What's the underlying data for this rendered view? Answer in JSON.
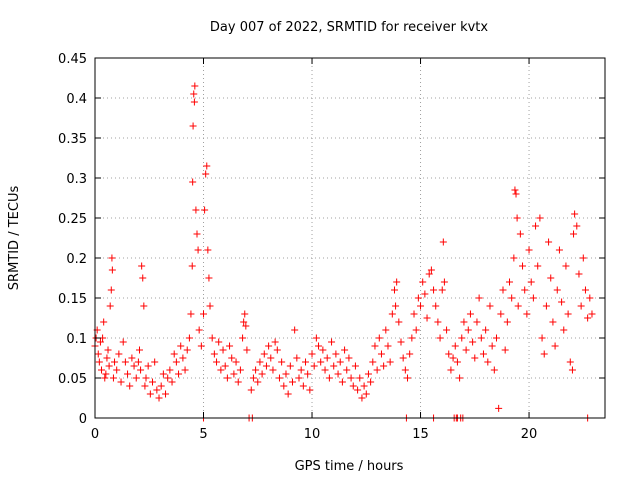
{
  "chart_data": {
    "type": "scatter",
    "title": "Day 007 of 2022, SRMTID for receiver kvtx",
    "xlabel": "GPS time / hours",
    "ylabel": "SRMTID / TECUs",
    "xlim": [
      0,
      23.5
    ],
    "ylim": [
      0,
      0.45
    ],
    "xticks": [
      0,
      5,
      10,
      15,
      20
    ],
    "xtick_labels": [
      "0",
      "5",
      "10",
      "15",
      "20"
    ],
    "yticks": [
      0,
      0.05,
      0.1,
      0.15,
      0.2,
      0.25,
      0.3,
      0.35,
      0.4,
      0.45
    ],
    "ytick_labels": [
      "0",
      "0.05",
      "0.1",
      "0.15",
      "0.2",
      "0.25",
      "0.3",
      "0.35",
      "0.4",
      "0.45"
    ],
    "grid": "dotted",
    "marker": "+",
    "color": "#ff0000",
    "series": [
      {
        "values": [
          [
            0.0,
            0.09
          ],
          [
            0.05,
            0.1
          ],
          [
            0.1,
            0.11
          ],
          [
            0.15,
            0.08
          ],
          [
            0.2,
            0.07
          ],
          [
            0.25,
            0.095
          ],
          [
            0.3,
            0.06
          ],
          [
            0.35,
            0.1
          ],
          [
            0.4,
            0.12
          ],
          [
            0.45,
            0.05
          ],
          [
            0.5,
            0.055
          ],
          [
            0.55,
            0.075
          ],
          [
            0.6,
            0.085
          ],
          [
            0.65,
            0.065
          ],
          [
            0.7,
            0.14
          ],
          [
            0.75,
            0.16
          ],
          [
            0.78,
            0.2
          ],
          [
            0.8,
            0.185
          ],
          [
            0.85,
            0.05
          ],
          [
            0.9,
            0.07
          ],
          [
            1.0,
            0.06
          ],
          [
            1.1,
            0.08
          ],
          [
            1.2,
            0.045
          ],
          [
            1.3,
            0.095
          ],
          [
            1.4,
            0.07
          ],
          [
            1.5,
            0.055
          ],
          [
            1.6,
            0.04
          ],
          [
            1.7,
            0.075
          ],
          [
            1.8,
            0.065
          ],
          [
            1.9,
            0.05
          ],
          [
            2.0,
            0.07
          ],
          [
            2.05,
            0.085
          ],
          [
            2.1,
            0.06
          ],
          [
            2.15,
            0.19
          ],
          [
            2.2,
            0.175
          ],
          [
            2.25,
            0.14
          ],
          [
            2.3,
            0.04
          ],
          [
            2.35,
            0.05
          ],
          [
            2.45,
            0.065
          ],
          [
            2.55,
            0.03
          ],
          [
            2.65,
            0.045
          ],
          [
            2.75,
            0.07
          ],
          [
            2.85,
            0.035
          ],
          [
            2.95,
            0.025
          ],
          [
            3.05,
            0.04
          ],
          [
            3.15,
            0.055
          ],
          [
            3.25,
            0.03
          ],
          [
            3.35,
            0.05
          ],
          [
            3.45,
            0.06
          ],
          [
            3.55,
            0.045
          ],
          [
            3.65,
            0.08
          ],
          [
            3.75,
            0.07
          ],
          [
            3.85,
            0.055
          ],
          [
            3.95,
            0.09
          ],
          [
            4.05,
            0.075
          ],
          [
            4.15,
            0.06
          ],
          [
            4.25,
            0.085
          ],
          [
            4.35,
            0.1
          ],
          [
            4.42,
            0.13
          ],
          [
            4.48,
            0.19
          ],
          [
            4.5,
            0.295
          ],
          [
            4.52,
            0.365
          ],
          [
            4.55,
            0.405
          ],
          [
            4.58,
            0.395
          ],
          [
            4.6,
            0.415
          ],
          [
            4.65,
            0.26
          ],
          [
            4.7,
            0.23
          ],
          [
            4.75,
            0.21
          ],
          [
            4.8,
            0.11
          ],
          [
            4.9,
            0.09
          ],
          [
            5.0,
            0.13
          ],
          [
            5.05,
            0.26
          ],
          [
            5.1,
            0.305
          ],
          [
            5.15,
            0.315
          ],
          [
            5.2,
            0.21
          ],
          [
            5.25,
            0.175
          ],
          [
            5.3,
            0.14
          ],
          [
            5.4,
            0.1
          ],
          [
            5.5,
            0.08
          ],
          [
            5.6,
            0.07
          ],
          [
            5.7,
            0.095
          ],
          [
            5.8,
            0.06
          ],
          [
            5.9,
            0.085
          ],
          [
            6.0,
            0.065
          ],
          [
            6.1,
            0.05
          ],
          [
            6.2,
            0.09
          ],
          [
            6.3,
            0.075
          ],
          [
            6.4,
            0.055
          ],
          [
            6.5,
            0.07
          ],
          [
            6.6,
            0.045
          ],
          [
            6.7,
            0.06
          ],
          [
            6.8,
            0.1
          ],
          [
            6.85,
            0.12
          ],
          [
            6.9,
            0.13
          ],
          [
            6.95,
            0.115
          ],
          [
            7.0,
            0.085
          ],
          [
            7.2,
            0.035
          ],
          [
            7.3,
            0.05
          ],
          [
            7.4,
            0.06
          ],
          [
            7.5,
            0.045
          ],
          [
            7.6,
            0.07
          ],
          [
            7.7,
            0.055
          ],
          [
            7.8,
            0.08
          ],
          [
            7.9,
            0.065
          ],
          [
            8.0,
            0.09
          ],
          [
            8.1,
            0.075
          ],
          [
            8.2,
            0.06
          ],
          [
            8.3,
            0.095
          ],
          [
            8.4,
            0.085
          ],
          [
            8.5,
            0.05
          ],
          [
            8.6,
            0.07
          ],
          [
            8.7,
            0.04
          ],
          [
            8.8,
            0.055
          ],
          [
            8.9,
            0.03
          ],
          [
            9.0,
            0.065
          ],
          [
            9.1,
            0.045
          ],
          [
            9.2,
            0.11
          ],
          [
            9.3,
            0.075
          ],
          [
            9.4,
            0.05
          ],
          [
            9.5,
            0.06
          ],
          [
            9.6,
            0.04
          ],
          [
            9.7,
            0.07
          ],
          [
            9.8,
            0.055
          ],
          [
            9.9,
            0.035
          ],
          [
            10.0,
            0.08
          ],
          [
            10.1,
            0.065
          ],
          [
            10.2,
            0.1
          ],
          [
            10.3,
            0.09
          ],
          [
            10.4,
            0.07
          ],
          [
            10.5,
            0.085
          ],
          [
            10.6,
            0.06
          ],
          [
            10.7,
            0.075
          ],
          [
            10.8,
            0.05
          ],
          [
            10.9,
            0.095
          ],
          [
            11.0,
            0.065
          ],
          [
            11.1,
            0.08
          ],
          [
            11.2,
            0.055
          ],
          [
            11.3,
            0.07
          ],
          [
            11.4,
            0.045
          ],
          [
            11.5,
            0.085
          ],
          [
            11.6,
            0.06
          ],
          [
            11.7,
            0.075
          ],
          [
            11.8,
            0.05
          ],
          [
            11.9,
            0.04
          ],
          [
            12.0,
            0.065
          ],
          [
            12.1,
            0.035
          ],
          [
            12.2,
            0.05
          ],
          [
            12.3,
            0.025
          ],
          [
            12.4,
            0.04
          ],
          [
            12.5,
            0.03
          ],
          [
            12.6,
            0.055
          ],
          [
            12.7,
            0.045
          ],
          [
            12.8,
            0.07
          ],
          [
            12.9,
            0.09
          ],
          [
            13.0,
            0.06
          ],
          [
            13.1,
            0.1
          ],
          [
            13.2,
            0.08
          ],
          [
            13.3,
            0.065
          ],
          [
            13.4,
            0.11
          ],
          [
            13.5,
            0.09
          ],
          [
            13.6,
            0.07
          ],
          [
            13.7,
            0.13
          ],
          [
            13.8,
            0.16
          ],
          [
            13.85,
            0.14
          ],
          [
            13.9,
            0.17
          ],
          [
            14.0,
            0.12
          ],
          [
            14.1,
            0.095
          ],
          [
            14.2,
            0.075
          ],
          [
            14.3,
            0.06
          ],
          [
            14.4,
            0.05
          ],
          [
            14.5,
            0.08
          ],
          [
            14.6,
            0.1
          ],
          [
            14.7,
            0.13
          ],
          [
            14.8,
            0.11
          ],
          [
            14.9,
            0.15
          ],
          [
            15.0,
            0.14
          ],
          [
            15.1,
            0.17
          ],
          [
            15.2,
            0.155
          ],
          [
            15.3,
            0.125
          ],
          [
            15.4,
            0.18
          ],
          [
            15.5,
            0.185
          ],
          [
            15.6,
            0.16
          ],
          [
            15.7,
            0.14
          ],
          [
            15.8,
            0.12
          ],
          [
            15.9,
            0.1
          ],
          [
            16.0,
            0.16
          ],
          [
            16.05,
            0.22
          ],
          [
            16.1,
            0.17
          ],
          [
            16.2,
            0.11
          ],
          [
            16.3,
            0.08
          ],
          [
            16.4,
            0.06
          ],
          [
            16.5,
            0.075
          ],
          [
            16.6,
            0.09
          ],
          [
            16.7,
            0.07
          ],
          [
            16.8,
            0.05
          ],
          [
            16.9,
            0.1
          ],
          [
            17.0,
            0.12
          ],
          [
            17.1,
            0.085
          ],
          [
            17.2,
            0.11
          ],
          [
            17.3,
            0.13
          ],
          [
            17.4,
            0.095
          ],
          [
            17.5,
            0.075
          ],
          [
            17.6,
            0.12
          ],
          [
            17.7,
            0.15
          ],
          [
            17.8,
            0.1
          ],
          [
            17.9,
            0.08
          ],
          [
            18.0,
            0.11
          ],
          [
            18.1,
            0.07
          ],
          [
            18.2,
            0.14
          ],
          [
            18.3,
            0.09
          ],
          [
            18.4,
            0.06
          ],
          [
            18.5,
            0.1
          ],
          [
            18.6,
            0.012
          ],
          [
            18.7,
            0.13
          ],
          [
            18.8,
            0.16
          ],
          [
            18.9,
            0.085
          ],
          [
            19.0,
            0.12
          ],
          [
            19.1,
            0.17
          ],
          [
            19.2,
            0.15
          ],
          [
            19.3,
            0.2
          ],
          [
            19.35,
            0.285
          ],
          [
            19.4,
            0.28
          ],
          [
            19.45,
            0.25
          ],
          [
            19.5,
            0.14
          ],
          [
            19.6,
            0.23
          ],
          [
            19.7,
            0.19
          ],
          [
            19.8,
            0.16
          ],
          [
            19.9,
            0.13
          ],
          [
            20.0,
            0.21
          ],
          [
            20.1,
            0.17
          ],
          [
            20.2,
            0.15
          ],
          [
            20.3,
            0.24
          ],
          [
            20.4,
            0.19
          ],
          [
            20.5,
            0.25
          ],
          [
            20.6,
            0.1
          ],
          [
            20.7,
            0.08
          ],
          [
            20.8,
            0.14
          ],
          [
            20.9,
            0.22
          ],
          [
            21.0,
            0.175
          ],
          [
            21.1,
            0.12
          ],
          [
            21.2,
            0.09
          ],
          [
            21.3,
            0.16
          ],
          [
            21.4,
            0.21
          ],
          [
            21.5,
            0.145
          ],
          [
            21.6,
            0.11
          ],
          [
            21.7,
            0.19
          ],
          [
            21.8,
            0.13
          ],
          [
            21.9,
            0.07
          ],
          [
            22.0,
            0.06
          ],
          [
            22.05,
            0.23
          ],
          [
            22.1,
            0.255
          ],
          [
            22.2,
            0.24
          ],
          [
            22.3,
            0.18
          ],
          [
            22.4,
            0.14
          ],
          [
            22.5,
            0.2
          ],
          [
            22.6,
            0.16
          ],
          [
            22.7,
            0.125
          ],
          [
            22.8,
            0.15
          ],
          [
            22.9,
            0.13
          ]
        ]
      },
      {
        "values": [
          [
            5.0,
            0
          ],
          [
            7.1,
            0
          ],
          [
            7.25,
            0
          ],
          [
            14.35,
            0
          ],
          [
            15.6,
            0
          ],
          [
            16.55,
            0
          ],
          [
            16.65,
            0
          ],
          [
            16.7,
            0
          ],
          [
            16.85,
            0
          ],
          [
            16.95,
            0
          ],
          [
            22.7,
            0
          ]
        ]
      }
    ]
  }
}
